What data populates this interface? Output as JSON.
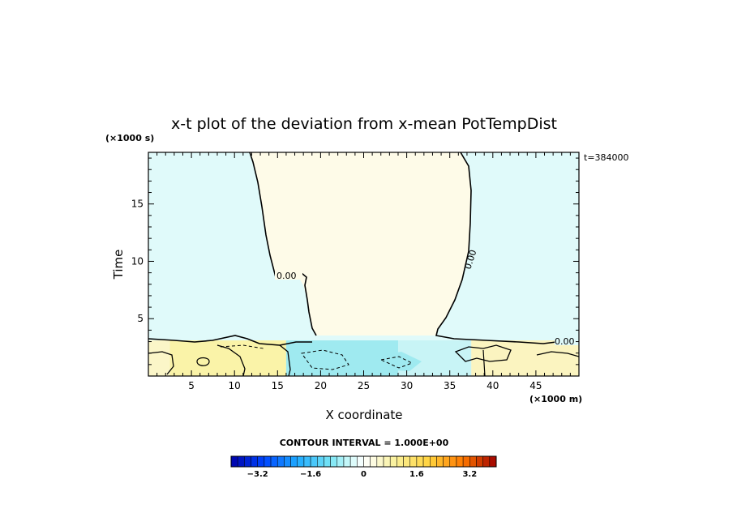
{
  "chart_data": {
    "type": "heatmap",
    "title": "x-t plot of the deviation from x-mean PotTempDist",
    "xlabel": "X coordinate",
    "ylabel": "Time",
    "x_unit": "(×1000 m)",
    "y_unit": "(×1000 s)",
    "xlim": [
      0,
      50
    ],
    "ylim": [
      0,
      19.5
    ],
    "x_ticks": [
      5,
      10,
      15,
      20,
      25,
      30,
      35,
      40,
      45
    ],
    "y_ticks": [
      5,
      10,
      15
    ],
    "time_stamp": "t=384000",
    "contour_interval_text": "CONTOUR INTERVAL = 1.000E+00",
    "contour_labels": [
      "0.00",
      "0.00",
      "0.00"
    ],
    "grid": false,
    "colorbar": {
      "range": [
        -4.0,
        4.0
      ],
      "step": 0.2,
      "tick_values": [
        -3.2,
        -1.6,
        0,
        1.6,
        3.2
      ],
      "tick_labels": [
        "−3.2",
        "−1.6",
        "0",
        "1.6",
        "3.2"
      ],
      "low_color": "#0000a8",
      "mid_color": "#ffffff",
      "high_color": "#a00000"
    },
    "regions": {
      "background_value": -0.05,
      "central_warm_region": {
        "value": 0.05,
        "x_top": [
          11.8,
          37.6
        ]
      },
      "bottom_band": {
        "t_range": [
          0,
          3.2
        ],
        "segments": [
          {
            "x": [
              0,
              2.5
            ],
            "value": 0.3
          },
          {
            "x": [
              2.5,
              16
            ],
            "value": 0.45
          },
          {
            "x": [
              16,
              29
            ],
            "value": -0.6
          },
          {
            "x": [
              29,
              37.5
            ],
            "value": -0.35
          },
          {
            "x": [
              37.5,
              50
            ],
            "value": 0.25
          }
        ]
      }
    },
    "colors": {
      "cool_fill": "#e0fafa",
      "warm_fill": "#fefbe8",
      "warm_band": "#faf3a8",
      "cold_band": "#9feaf0"
    }
  }
}
